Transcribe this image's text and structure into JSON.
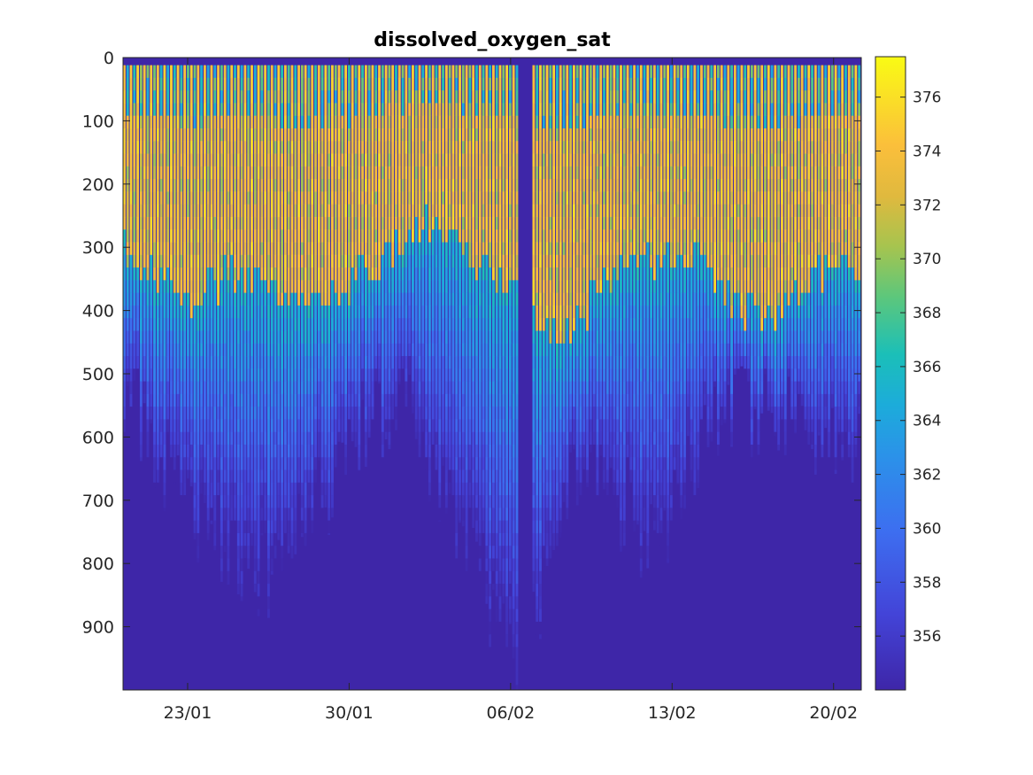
{
  "chart_data": {
    "type": "heatmap",
    "title": "dissolved_oxygen_sat",
    "xlabel": "",
    "ylabel": "",
    "x_tick_labels": [
      "23/01",
      "30/01",
      "06/02",
      "13/02",
      "20/02"
    ],
    "x_range": [
      "2024-01-20",
      "2024-02-21"
    ],
    "y_reversed": true,
    "y_ticks": [
      0,
      100,
      200,
      300,
      400,
      500,
      600,
      700,
      800,
      900
    ],
    "ylim": [
      0,
      1000
    ],
    "colorbar": {
      "colormap": "parula",
      "range": [
        354,
        377.5
      ],
      "ticks": [
        356,
        358,
        360,
        362,
        364,
        366,
        368,
        370,
        372,
        374,
        376
      ]
    },
    "profiles": {
      "count": 220,
      "gap_day_range": [
        17.2,
        17.8
      ],
      "description_values": "Each vertical column is one profile; surface values ~372-376, decreasing through 364-360 to ~355 at depth.",
      "surface_layer_depth_m": 12,
      "oxycline_depth_by_day": [
        {
          "day": 0,
          "depth": 300
        },
        {
          "day": 3,
          "depth": 380
        },
        {
          "day": 5,
          "depth": 320
        },
        {
          "day": 8,
          "depth": 400
        },
        {
          "day": 11,
          "depth": 320
        },
        {
          "day": 13,
          "depth": 250
        },
        {
          "day": 16,
          "depth": 330
        },
        {
          "day": 19,
          "depth": 430
        },
        {
          "day": 22,
          "depth": 310
        },
        {
          "day": 25,
          "depth": 320
        },
        {
          "day": 28,
          "depth": 420
        },
        {
          "day": 31,
          "depth": 300
        },
        {
          "day": 32,
          "depth": 350
        }
      ],
      "profile_bottom_depth_by_day": [
        {
          "day": 0,
          "depth": 500
        },
        {
          "day": 3,
          "depth": 700
        },
        {
          "day": 6,
          "depth": 800
        },
        {
          "day": 9,
          "depth": 650
        },
        {
          "day": 12,
          "depth": 500
        },
        {
          "day": 15,
          "depth": 750
        },
        {
          "day": 17,
          "depth": 950
        },
        {
          "day": 20,
          "depth": 600
        },
        {
          "day": 23,
          "depth": 750
        },
        {
          "day": 26,
          "depth": 520
        },
        {
          "day": 29,
          "depth": 550
        },
        {
          "day": 32,
          "depth": 600
        }
      ]
    }
  }
}
